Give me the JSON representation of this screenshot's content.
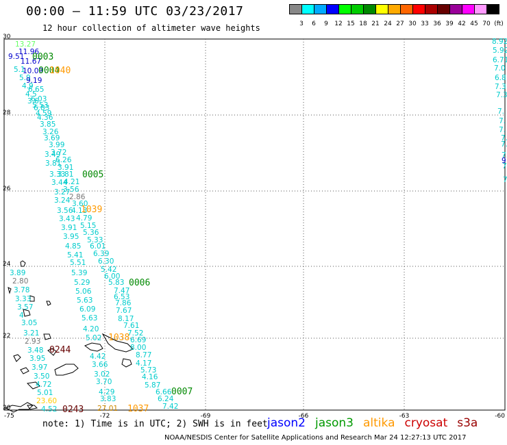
{
  "header": {
    "title": "00:00 – 11:59 UTC 03/23/2017",
    "subtitle": "12 hour collection of altimeter wave heights"
  },
  "colorbar": {
    "colors": [
      "#888888",
      "#00ffff",
      "#00aaff",
      "#0000ff",
      "#00ff00",
      "#00cc00",
      "#008800",
      "#ffff00",
      "#ffaa00",
      "#ff6600",
      "#ff0000",
      "#aa0000",
      "#660000",
      "#990099",
      "#ff00ff",
      "#ff99ff",
      "#000000"
    ],
    "labels": [
      "3",
      "6",
      "9",
      "12",
      "15",
      "18",
      "21",
      "24",
      "27",
      "30",
      "33",
      "36",
      "39",
      "42",
      "45",
      "70",
      "(ft)"
    ]
  },
  "axes": {
    "lat_ticks": [
      "30",
      "28",
      "26",
      "24",
      "22",
      "20"
    ],
    "lon_ticks": [
      "-75",
      "-72",
      "-69",
      "-66",
      "-63",
      "-60"
    ]
  },
  "passes": [
    {
      "label": "0003",
      "color": "#008800"
    },
    {
      "label": "0004",
      "color": "#008800"
    },
    {
      "label": "1040",
      "color": "#ff9900"
    },
    {
      "label": "0005",
      "color": "#008800"
    },
    {
      "label": "1039",
      "color": "#ff9900"
    },
    {
      "label": "0006",
      "color": "#008800"
    },
    {
      "label": "1038",
      "color": "#ff9900"
    },
    {
      "label": "0244",
      "color": "#660000"
    },
    {
      "label": "0007",
      "color": "#008800"
    },
    {
      "label": "0243",
      "color": "#660000"
    },
    {
      "label": "1037",
      "color": "#ff9900"
    }
  ],
  "wave_values": [
    {
      "v": "13.27",
      "c": "#66ff66"
    },
    {
      "v": "11.96",
      "c": "#0000cc"
    },
    {
      "v": "9.51",
      "c": "#0000cc"
    },
    {
      "v": "11.67",
      "c": "#0000cc"
    },
    {
      "v": "5.1",
      "c": "#00cccc"
    },
    {
      "v": "10.09",
      "c": "#0000cc"
    },
    {
      "v": "5.9",
      "c": "#00cccc"
    },
    {
      "v": "9.19",
      "c": "#0000cc"
    },
    {
      "v": "4.9",
      "c": "#00cccc"
    },
    {
      "v": "6.65",
      "c": "#00cccc"
    },
    {
      "v": "4.5",
      "c": "#00cccc"
    },
    {
      "v": "6.03",
      "c": "#00cccc"
    },
    {
      "v": "3.6",
      "c": "#00cccc"
    },
    {
      "v": "5.53",
      "c": "#00cccc"
    },
    {
      "v": "6.83",
      "c": "#00cccc"
    },
    {
      "v": "4.59",
      "c": "#00cccc"
    },
    {
      "v": "4.36",
      "c": "#00cccc"
    },
    {
      "v": "3.85",
      "c": "#00cccc"
    },
    {
      "v": "3.26",
      "c": "#00cccc"
    },
    {
      "v": "3.69",
      "c": "#00cccc"
    },
    {
      "v": "3.99",
      "c": "#00cccc"
    },
    {
      "v": "3.72",
      "c": "#00cccc"
    },
    {
      "v": "3.49",
      "c": "#00cccc"
    },
    {
      "v": "6.26",
      "c": "#00cccc"
    },
    {
      "v": "3.81",
      "c": "#00cccc"
    },
    {
      "v": "3.91",
      "c": "#00cccc"
    },
    {
      "v": "3.33",
      "c": "#00cccc"
    },
    {
      "v": "3.81",
      "c": "#00cccc"
    },
    {
      "v": "3.44",
      "c": "#00cccc"
    },
    {
      "v": "4.21",
      "c": "#00cccc"
    },
    {
      "v": "3.27",
      "c": "#00cccc"
    },
    {
      "v": "3.56",
      "c": "#00cccc"
    },
    {
      "v": "2.86",
      "c": "#777777"
    },
    {
      "v": "3.24",
      "c": "#00cccc"
    },
    {
      "v": "3.60",
      "c": "#00cccc"
    },
    {
      "v": "3.56",
      "c": "#00cccc"
    },
    {
      "v": "4.13",
      "c": "#00cccc"
    },
    {
      "v": "3.43",
      "c": "#00cccc"
    },
    {
      "v": "4.79",
      "c": "#00cccc"
    },
    {
      "v": "3.91",
      "c": "#00cccc"
    },
    {
      "v": "5.15",
      "c": "#00cccc"
    },
    {
      "v": "3.95",
      "c": "#00cccc"
    },
    {
      "v": "5.36",
      "c": "#00cccc"
    },
    {
      "v": "5.33",
      "c": "#00cccc"
    },
    {
      "v": "4.85",
      "c": "#00cccc"
    },
    {
      "v": "6.01",
      "c": "#00cccc"
    },
    {
      "v": "5.41",
      "c": "#00cccc"
    },
    {
      "v": "6.39",
      "c": "#00cccc"
    },
    {
      "v": "5.51",
      "c": "#00cccc"
    },
    {
      "v": "6.30",
      "c": "#00cccc"
    },
    {
      "v": "5.42",
      "c": "#00cccc"
    },
    {
      "v": "3.89",
      "c": "#00cccc"
    },
    {
      "v": "5.39",
      "c": "#00cccc"
    },
    {
      "v": "6.00",
      "c": "#00cccc"
    },
    {
      "v": "2.80",
      "c": "#777777"
    },
    {
      "v": "5.29",
      "c": "#00cccc"
    },
    {
      "v": "5.83",
      "c": "#00cccc"
    },
    {
      "v": "3.78",
      "c": "#00cccc"
    },
    {
      "v": "5.06",
      "c": "#00cccc"
    },
    {
      "v": "7.47",
      "c": "#00cccc"
    },
    {
      "v": "3.33",
      "c": "#00cccc"
    },
    {
      "v": "6.53",
      "c": "#00cccc"
    },
    {
      "v": "5.63",
      "c": "#00cccc"
    },
    {
      "v": "3.57",
      "c": "#00cccc"
    },
    {
      "v": "7.86",
      "c": "#00cccc"
    },
    {
      "v": "6.09",
      "c": "#00cccc"
    },
    {
      "v": "7.67",
      "c": "#00cccc"
    },
    {
      "v": "4",
      "c": "#00cccc"
    },
    {
      "v": "5.63",
      "c": "#00cccc"
    },
    {
      "v": "8.17",
      "c": "#00cccc"
    },
    {
      "v": "3.05",
      "c": "#00cccc"
    },
    {
      "v": "7.61",
      "c": "#00cccc"
    },
    {
      "v": "4.20",
      "c": "#00cccc"
    },
    {
      "v": "3.21",
      "c": "#00cccc"
    },
    {
      "v": "7.52",
      "c": "#00cccc"
    },
    {
      "v": "5.02",
      "c": "#00cccc"
    },
    {
      "v": "6.69",
      "c": "#00cccc"
    },
    {
      "v": "2.93",
      "c": "#777777"
    },
    {
      "v": "8.00",
      "c": "#00cccc"
    },
    {
      "v": "3.48",
      "c": "#00cccc"
    },
    {
      "v": "4.42",
      "c": "#00cccc"
    },
    {
      "v": "8.77",
      "c": "#00cccc"
    },
    {
      "v": "3.95",
      "c": "#00cccc"
    },
    {
      "v": "4.17",
      "c": "#00cccc"
    },
    {
      "v": "3.66",
      "c": "#00cccc"
    },
    {
      "v": "3.97",
      "c": "#00cccc"
    },
    {
      "v": "5.73",
      "c": "#00cccc"
    },
    {
      "v": "3.02",
      "c": "#00cccc"
    },
    {
      "v": "4.16",
      "c": "#00cccc"
    },
    {
      "v": "3.50",
      "c": "#00cccc"
    },
    {
      "v": "3.70",
      "c": "#00cccc"
    },
    {
      "v": "5.87",
      "c": "#00cccc"
    },
    {
      "v": "4.72",
      "c": "#00cccc"
    },
    {
      "v": "4.29",
      "c": "#00cccc"
    },
    {
      "v": "6.66",
      "c": "#00cccc"
    },
    {
      "v": "5.01",
      "c": "#00cccc"
    },
    {
      "v": "6.24",
      "c": "#00cccc"
    },
    {
      "v": "3.83",
      "c": "#00cccc"
    },
    {
      "v": "23.60",
      "c": "#ffcc00"
    },
    {
      "v": "7.42",
      "c": "#00cccc"
    },
    {
      "v": "27.01",
      "c": "#cc8800"
    },
    {
      "v": "4.52",
      "c": "#00cccc"
    },
    {
      "v": "8.92",
      "c": "#00cccc"
    },
    {
      "v": "5.92",
      "c": "#00cccc"
    },
    {
      "v": "6.71",
      "c": "#00cccc"
    },
    {
      "v": "7.0",
      "c": "#00cccc"
    },
    {
      "v": "6.8",
      "c": "#00cccc"
    },
    {
      "v": "7.3",
      "c": "#00cccc"
    },
    {
      "v": "7.3",
      "c": "#00cccc"
    },
    {
      "v": "7.",
      "c": "#00cccc"
    },
    {
      "v": "7.",
      "c": "#00cccc"
    },
    {
      "v": "7.",
      "c": "#00cccc"
    },
    {
      "v": "7.",
      "c": "#00cccc"
    },
    {
      "v": "7.",
      "c": "#00cccc"
    },
    {
      "v": "7.",
      "c": "#00cccc"
    },
    {
      "v": "9",
      "c": "#0000cc"
    },
    {
      "v": "7.",
      "c": "#00cccc"
    },
    {
      "v": "7.",
      "c": "#00cccc"
    },
    {
      "v": "8",
      "c": "#00cccc"
    }
  ],
  "footer": {
    "note": "note: 1) Time is in UTC; 2) SWH is in feet",
    "credit": "NOAA/NESDIS Center for Satellite Applications and Research   Mar 24 12:27:13 UTC 2017",
    "satellites": [
      {
        "name": "jason2",
        "color": "#0000ff"
      },
      {
        "name": "jason3",
        "color": "#009900"
      },
      {
        "name": "altika",
        "color": "#ff9900"
      },
      {
        "name": "cryosat",
        "color": "#cc0000"
      },
      {
        "name": "s3a",
        "color": "#990000"
      }
    ]
  }
}
